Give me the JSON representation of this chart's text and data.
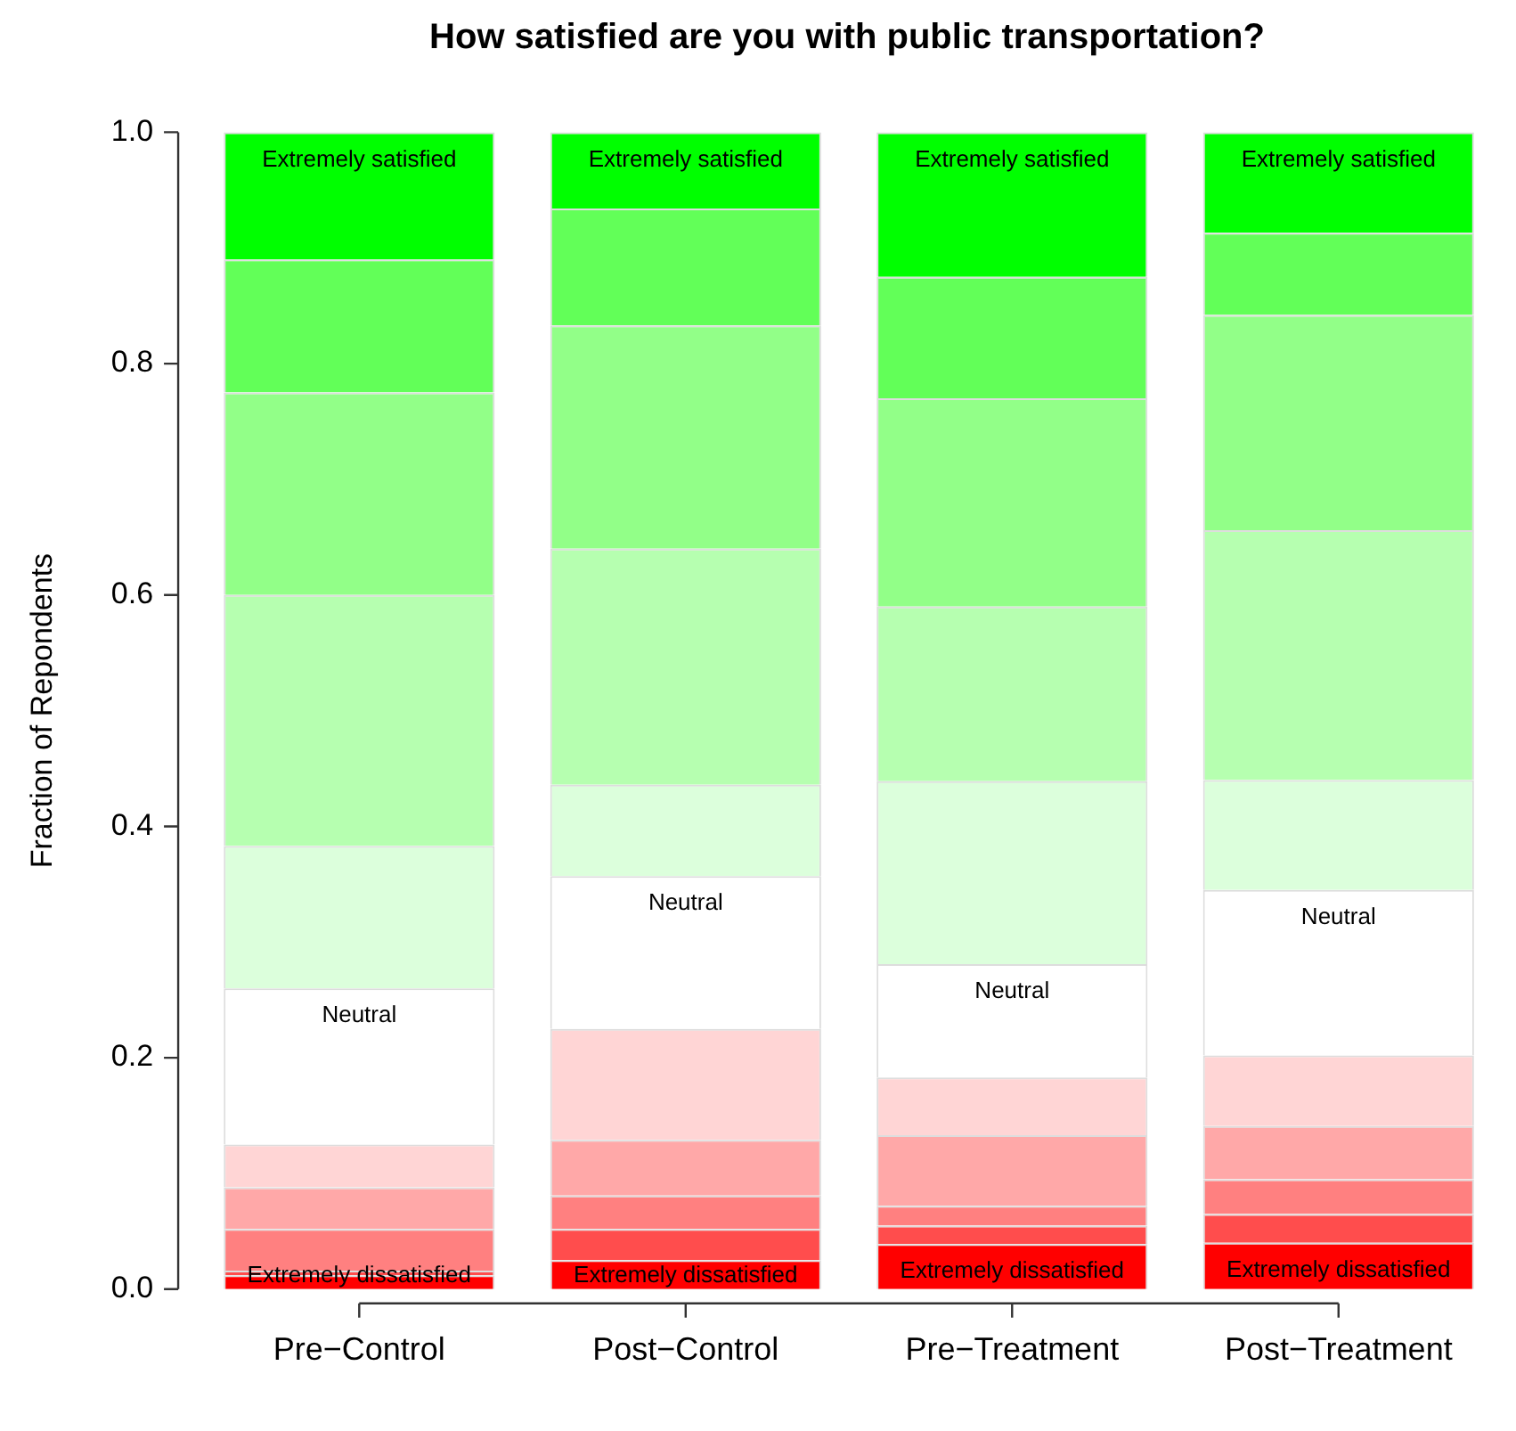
{
  "chart_data": {
    "type": "bar",
    "stacked": true,
    "title": "How satisfied are you with public transportation?",
    "ylabel": "Fraction of Repondents",
    "categories": [
      "Pre−Control",
      "Post−Control",
      "Pre−Treatment",
      "Post−Treatment"
    ],
    "series": [
      {
        "name": "Extremely dissatisfied",
        "color": "#ff0000",
        "values": [
          0.012,
          0.025,
          0.039,
          0.04
        ]
      },
      {
        "color": "#ff4d4d",
        "values": [
          0.004,
          0.027,
          0.016,
          0.025
        ]
      },
      {
        "color": "#ff8080",
        "values": [
          0.036,
          0.029,
          0.017,
          0.03
        ]
      },
      {
        "color": "#ffa8a8",
        "values": [
          0.036,
          0.048,
          0.061,
          0.046
        ]
      },
      {
        "color": "#ffd5d5",
        "values": [
          0.037,
          0.096,
          0.05,
          0.061
        ]
      },
      {
        "name": "Neutral",
        "color": "#ffffff",
        "values": [
          0.135,
          0.132,
          0.098,
          0.143
        ]
      },
      {
        "color": "#dcffdc",
        "values": [
          0.123,
          0.079,
          0.158,
          0.095
        ]
      },
      {
        "color": "#b6ffb0",
        "values": [
          0.217,
          0.204,
          0.151,
          0.216
        ]
      },
      {
        "color": "#92ff88",
        "values": [
          0.175,
          0.193,
          0.18,
          0.186
        ]
      },
      {
        "color": "#62ff58",
        "values": [
          0.115,
          0.101,
          0.105,
          0.071
        ]
      },
      {
        "name": "Extremely satisfied",
        "color": "#00ff00",
        "values": [
          0.11,
          0.066,
          0.125,
          0.087
        ]
      }
    ],
    "ylim": [
      0,
      1
    ],
    "yticks": [
      {
        "value": 0,
        "label": "0.0"
      },
      {
        "value": 0.2,
        "label": "0.2"
      },
      {
        "value": 0.4,
        "label": "0.4"
      },
      {
        "value": 0.6,
        "label": "0.6"
      },
      {
        "value": 0.8,
        "label": "0.8"
      },
      {
        "value": 1,
        "label": "1.0"
      }
    ],
    "grid": false,
    "legend": false
  }
}
